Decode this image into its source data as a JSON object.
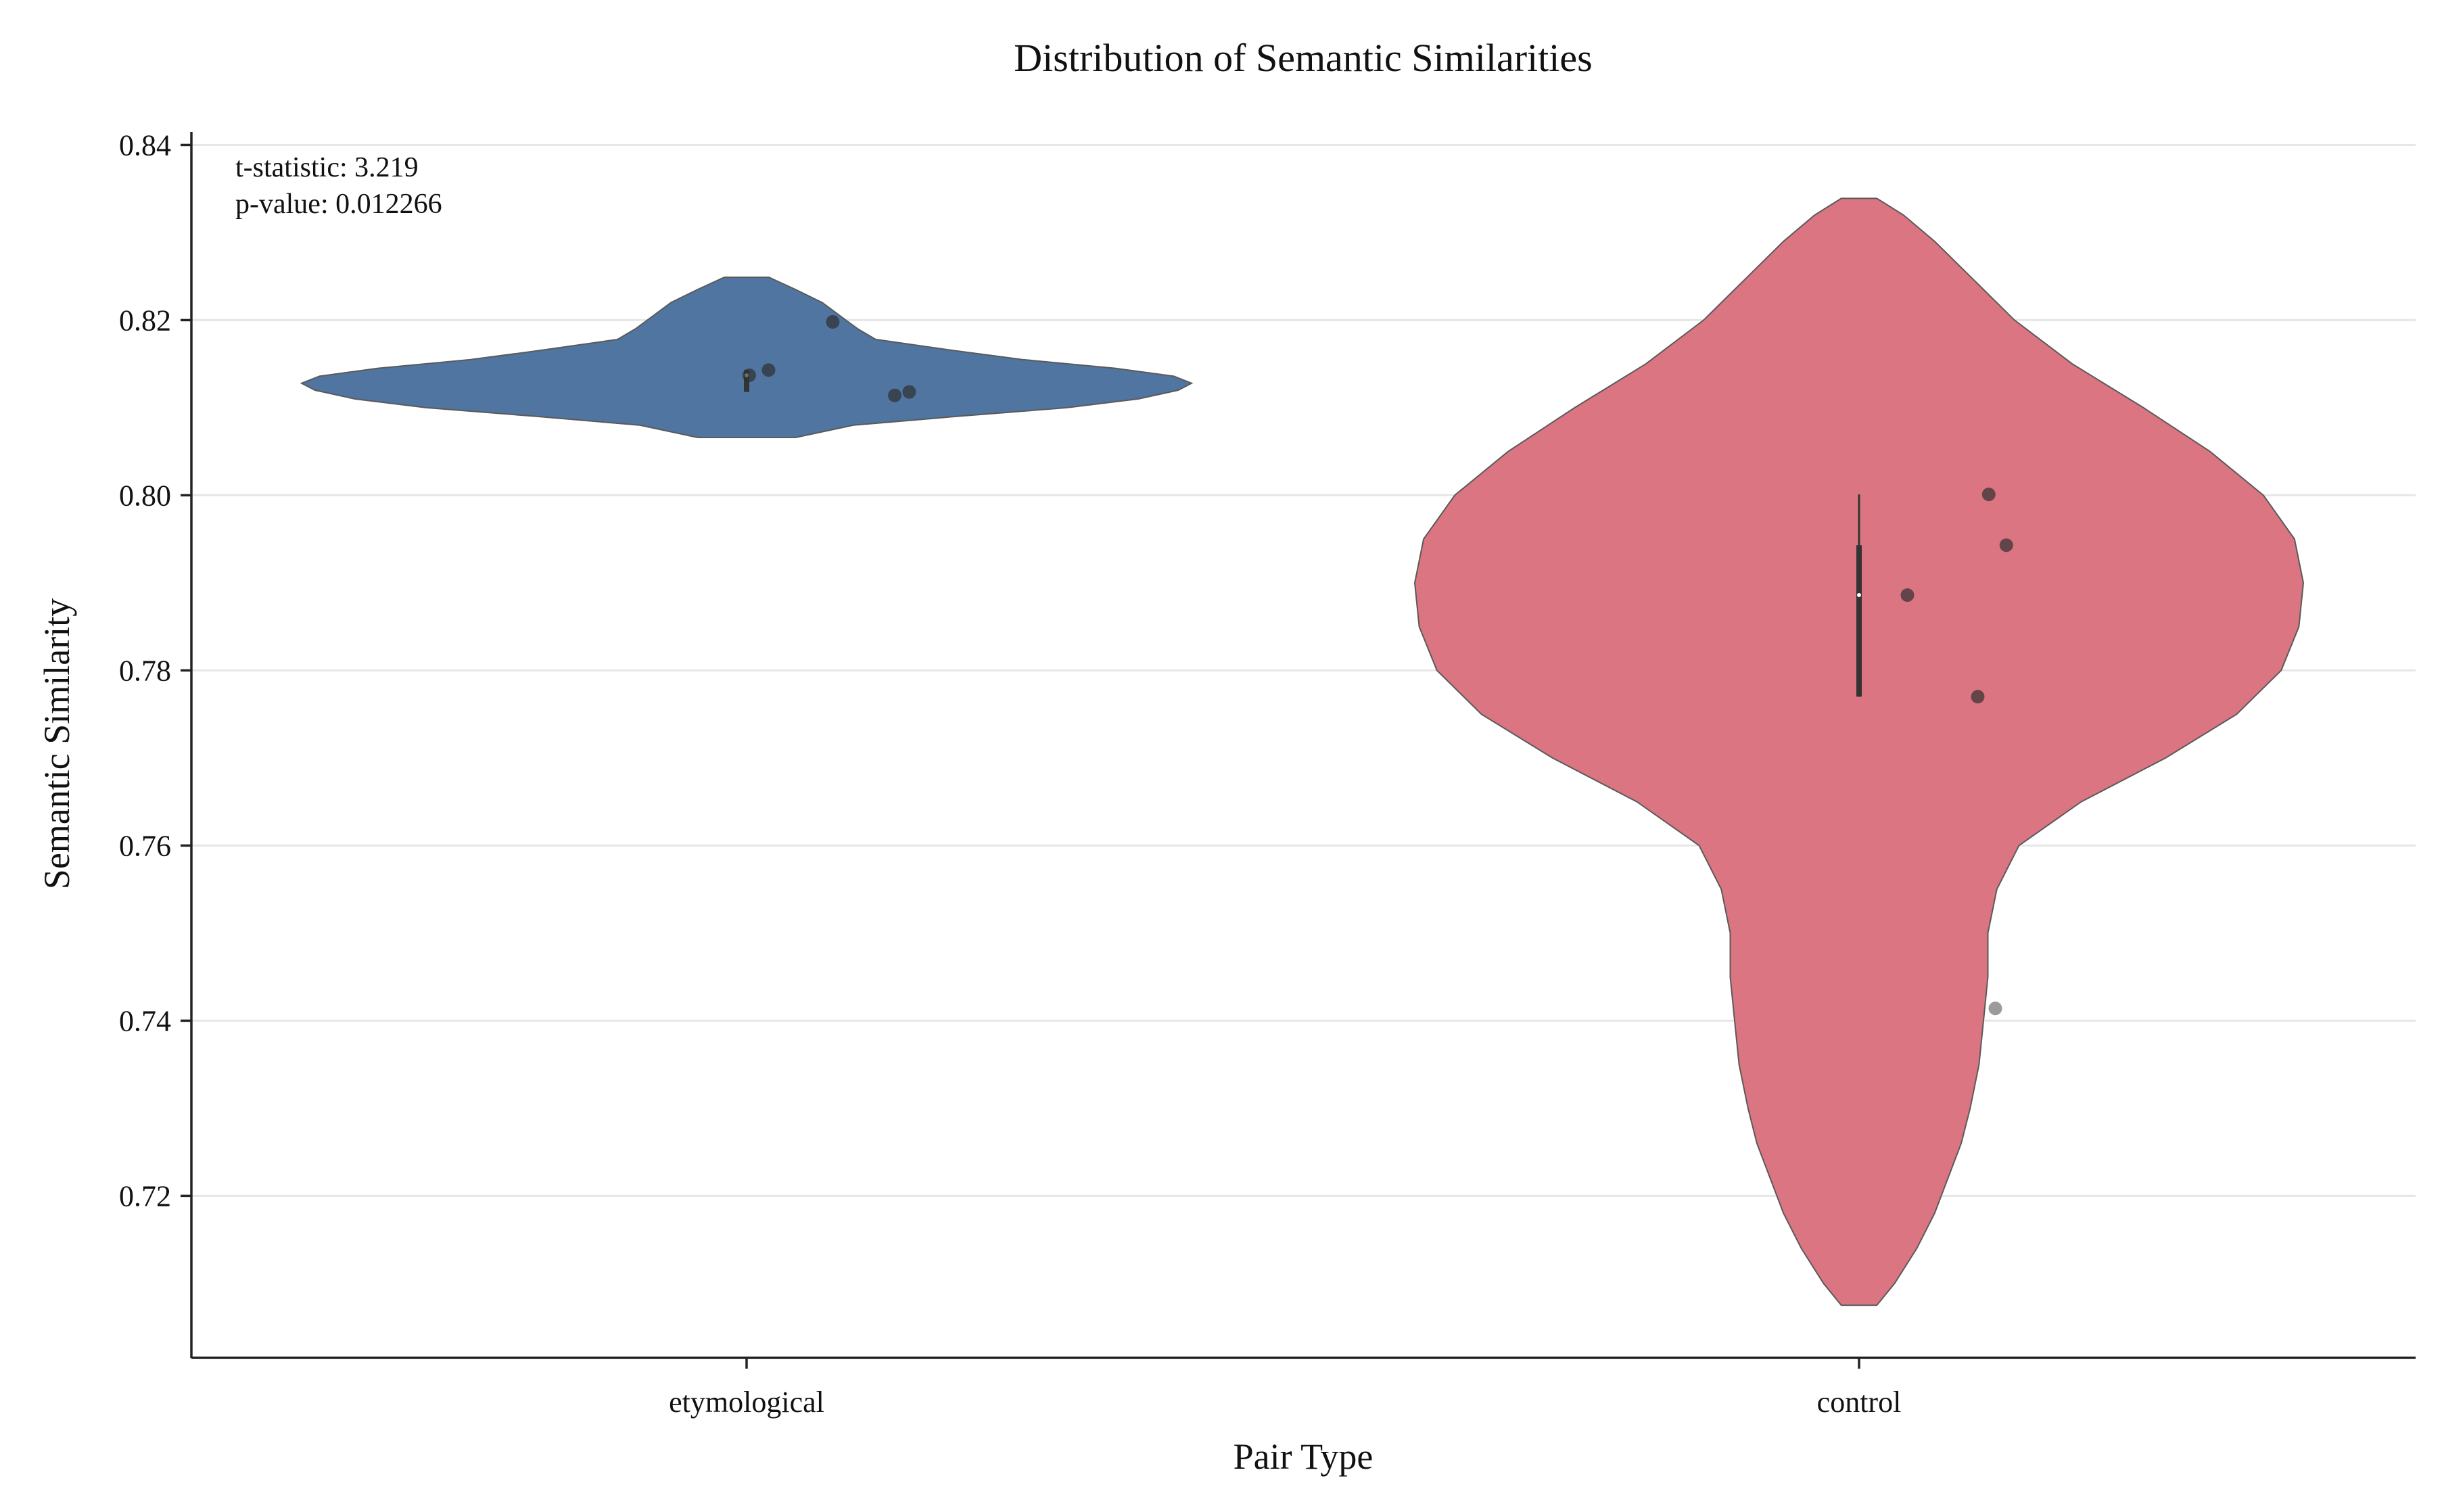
{
  "chart_data": {
    "type": "violin",
    "title": "Distribution of Semantic Similarities",
    "xlabel": "Pair Type",
    "ylabel": "Semantic Similarity",
    "ylim": [
      0.7015,
      0.8415
    ],
    "yticks": [
      0.72,
      0.74,
      0.76,
      0.78,
      0.8,
      0.82,
      0.84
    ],
    "ytick_labels": [
      "0.72",
      "0.74",
      "0.76",
      "0.78",
      "0.80",
      "0.82",
      "0.84"
    ],
    "grid": "horizontal",
    "categories": [
      "etymological",
      "control"
    ],
    "annotations": {
      "t_statistic": "t-statistic: 3.219",
      "p_value": "p-value: 0.012266"
    },
    "series": [
      {
        "category": "etymological",
        "color": "#4f75a0",
        "points": [
          0.8137,
          0.8143,
          0.8198,
          0.8114,
          0.8118
        ],
        "point_jitter": [
          0.006,
          0.05,
          0.196,
          0.337,
          0.37
        ],
        "quartiles": {
          "q1": 0.8118,
          "median": 0.8137,
          "q3": 0.8143
        },
        "range": [
          0.8066,
          0.8249
        ],
        "density": [
          [
            0.8066,
            0.11
          ],
          [
            0.808,
            0.24
          ],
          [
            0.809,
            0.47
          ],
          [
            0.81,
            0.72
          ],
          [
            0.811,
            0.88
          ],
          [
            0.812,
            0.97
          ],
          [
            0.8128,
            1.0
          ],
          [
            0.8136,
            0.96
          ],
          [
            0.8145,
            0.83
          ],
          [
            0.8155,
            0.62
          ],
          [
            0.8165,
            0.47
          ],
          [
            0.8178,
            0.29
          ],
          [
            0.819,
            0.25
          ],
          [
            0.8205,
            0.21
          ],
          [
            0.822,
            0.17
          ],
          [
            0.8235,
            0.11
          ],
          [
            0.8249,
            0.05
          ]
        ]
      },
      {
        "category": "control",
        "color": "#dc7582",
        "points": [
          0.8001,
          0.7943,
          0.7886,
          0.777,
          0.7414
        ],
        "point_jitter": [
          0.295,
          0.335,
          0.11,
          0.27,
          0.31
        ],
        "quartiles": {
          "q1": 0.777,
          "median": 0.7886,
          "q3": 0.7943
        },
        "whisker": [
          0.777,
          0.8001
        ],
        "range": [
          0.7075,
          0.8339
        ],
        "density": [
          [
            0.7075,
            0.04
          ],
          [
            0.71,
            0.08
          ],
          [
            0.714,
            0.13
          ],
          [
            0.718,
            0.17
          ],
          [
            0.722,
            0.2
          ],
          [
            0.726,
            0.23
          ],
          [
            0.73,
            0.25
          ],
          [
            0.735,
            0.27
          ],
          [
            0.74,
            0.28
          ],
          [
            0.745,
            0.29
          ],
          [
            0.75,
            0.29
          ],
          [
            0.755,
            0.31
          ],
          [
            0.76,
            0.36
          ],
          [
            0.765,
            0.5
          ],
          [
            0.77,
            0.69
          ],
          [
            0.775,
            0.85
          ],
          [
            0.78,
            0.95
          ],
          [
            0.785,
            0.99
          ],
          [
            0.79,
            1.0
          ],
          [
            0.795,
            0.98
          ],
          [
            0.8,
            0.91
          ],
          [
            0.805,
            0.79
          ],
          [
            0.81,
            0.64
          ],
          [
            0.815,
            0.48
          ],
          [
            0.82,
            0.35
          ],
          [
            0.825,
            0.25
          ],
          [
            0.829,
            0.17
          ],
          [
            0.832,
            0.1
          ],
          [
            0.8339,
            0.04
          ]
        ]
      }
    ]
  }
}
